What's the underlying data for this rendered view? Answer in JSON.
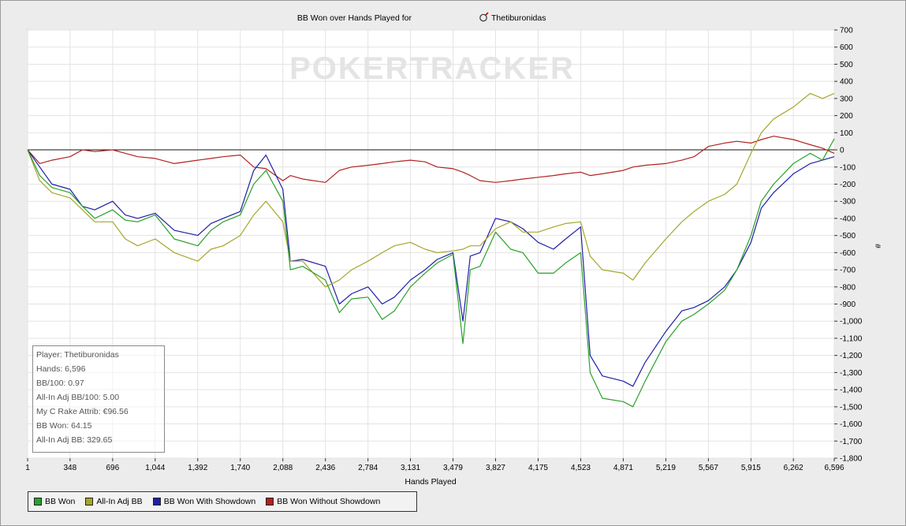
{
  "chart_data": {
    "type": "line",
    "title": "BB Won over Hands Played for",
    "player": "Thetiburonidas",
    "watermark": "POKERTRACKER",
    "xlabel": "Hands Played",
    "ylabel": "#",
    "xlim": [
      1,
      6596
    ],
    "ylim": [
      -1800,
      700
    ],
    "x_ticks": [
      "1",
      "348",
      "696",
      "1,044",
      "1,392",
      "1,740",
      "2,088",
      "2,436",
      "2,784",
      "3,131",
      "3,479",
      "3,827",
      "4,175",
      "4,523",
      "4,871",
      "5,219",
      "5,567",
      "5,915",
      "6,262",
      "6,596"
    ],
    "x_tick_values": [
      1,
      348,
      696,
      1044,
      1392,
      1740,
      2088,
      2436,
      2784,
      3131,
      3479,
      3827,
      4175,
      4523,
      4871,
      5219,
      5567,
      5915,
      6262,
      6596
    ],
    "y_ticks": [
      "700",
      "600",
      "500",
      "400",
      "300",
      "200",
      "100",
      "0",
      "-100",
      "-200",
      "-300",
      "-400",
      "-500",
      "-600",
      "-700",
      "-800",
      "-900",
      "-1,000",
      "-1,100",
      "-1,200",
      "-1,300",
      "-1,400",
      "-1,500",
      "-1,600",
      "-1,700",
      "-1,800"
    ],
    "y_tick_values": [
      700,
      600,
      500,
      400,
      300,
      200,
      100,
      0,
      -100,
      -200,
      -300,
      -400,
      -500,
      -600,
      -700,
      -800,
      -900,
      -1000,
      -1100,
      -1200,
      -1300,
      -1400,
      -1500,
      -1600,
      -1700,
      -1800
    ],
    "grid": true,
    "legend_position": "bottom-left",
    "x": [
      1,
      100,
      200,
      348,
      450,
      550,
      696,
      800,
      900,
      1044,
      1200,
      1392,
      1500,
      1600,
      1740,
      1850,
      1950,
      2088,
      2150,
      2250,
      2436,
      2550,
      2650,
      2784,
      2900,
      3000,
      3131,
      3250,
      3350,
      3479,
      3560,
      3620,
      3700,
      3827,
      3950,
      4050,
      4175,
      4300,
      4400,
      4523,
      4600,
      4700,
      4871,
      4950,
      5050,
      5219,
      5350,
      5450,
      5567,
      5700,
      5800,
      5915,
      6000,
      6100,
      6262,
      6400,
      6500,
      6596
    ],
    "series": [
      {
        "name": "BB Won",
        "color": "#2ca02c",
        "values": [
          0,
          -150,
          -220,
          -250,
          -330,
          -400,
          -350,
          -410,
          -420,
          -380,
          -520,
          -560,
          -470,
          -420,
          -380,
          -200,
          -120,
          -300,
          -700,
          -680,
          -760,
          -950,
          -870,
          -860,
          -990,
          -940,
          -800,
          -720,
          -660,
          -610,
          -1130,
          -700,
          -680,
          -480,
          -580,
          -600,
          -720,
          -720,
          -660,
          -600,
          -1300,
          -1450,
          -1470,
          -1500,
          -1350,
          -1120,
          -1000,
          -960,
          -900,
          -820,
          -700,
          -500,
          -300,
          -200,
          -80,
          -20,
          -60,
          64.15
        ]
      },
      {
        "name": "All-In Adj BB",
        "color": "#a6a62c",
        "values": [
          0,
          -180,
          -250,
          -280,
          -350,
          -420,
          -420,
          -520,
          -560,
          -520,
          -600,
          -650,
          -580,
          -560,
          -500,
          -380,
          -300,
          -420,
          -650,
          -650,
          -800,
          -760,
          -700,
          -650,
          -600,
          -560,
          -540,
          -580,
          -600,
          -590,
          -580,
          -560,
          -560,
          -460,
          -420,
          -480,
          -480,
          -450,
          -430,
          -420,
          -620,
          -700,
          -720,
          -760,
          -660,
          -520,
          -420,
          -360,
          -300,
          -260,
          -200,
          -20,
          100,
          180,
          250,
          330,
          300,
          329.65
        ]
      },
      {
        "name": "BB Won With Showdown",
        "color": "#1f1fa8",
        "values": [
          0,
          -100,
          -200,
          -230,
          -330,
          -350,
          -300,
          -380,
          -400,
          -370,
          -470,
          -500,
          -430,
          -400,
          -360,
          -120,
          -30,
          -230,
          -650,
          -640,
          -680,
          -900,
          -840,
          -800,
          -900,
          -860,
          -760,
          -700,
          -640,
          -600,
          -1000,
          -620,
          -600,
          -400,
          -420,
          -460,
          -540,
          -580,
          -520,
          -450,
          -1200,
          -1320,
          -1350,
          -1380,
          -1240,
          -1060,
          -940,
          -920,
          -880,
          -800,
          -700,
          -540,
          -340,
          -250,
          -140,
          -80,
          -60,
          -40
        ]
      },
      {
        "name": "BB Won Without Showdown",
        "color": "#b22222",
        "values": [
          0,
          -80,
          -60,
          -40,
          0,
          -10,
          0,
          -20,
          -40,
          -50,
          -80,
          -60,
          -50,
          -40,
          -30,
          -100,
          -110,
          -180,
          -150,
          -170,
          -190,
          -120,
          -100,
          -90,
          -80,
          -70,
          -60,
          -70,
          -100,
          -110,
          -130,
          -150,
          -180,
          -190,
          -180,
          -170,
          -160,
          -150,
          -140,
          -130,
          -150,
          -140,
          -120,
          -100,
          -90,
          -80,
          -60,
          -40,
          20,
          40,
          50,
          40,
          60,
          80,
          60,
          30,
          10,
          -20
        ]
      }
    ]
  },
  "stats": {
    "player": "Player: Thetiburonidas",
    "hands": "Hands: 6,596",
    "bb100": "BB/100: 0.97",
    "allin_bb100": "All-In Adj BB/100: 5.00",
    "rake": "My C Rake Attrib: €96.56",
    "bb_won": "BB Won: 64.15",
    "allin_bb": "All-In Adj BB: 329.65"
  },
  "legend": {
    "items": [
      "BB Won",
      "All-In Adj BB",
      "BB Won With Showdown",
      "BB Won Without Showdown"
    ]
  },
  "colors": {
    "plot_background": "#ffffff",
    "grid": "#e3e3e3"
  }
}
